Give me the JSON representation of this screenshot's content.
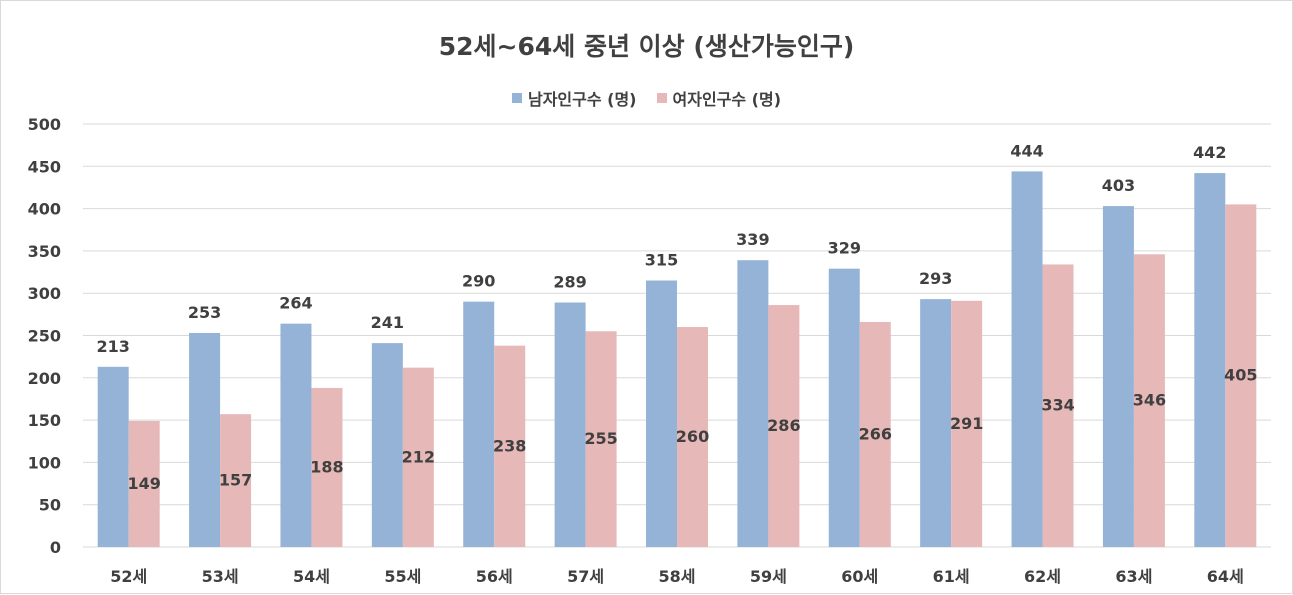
{
  "chart_data": {
    "type": "bar",
    "title": "52세~64세 중년 이상 (생산가능인구)",
    "categories": [
      "52세",
      "53세",
      "54세",
      "55세",
      "56세",
      "57세",
      "58세",
      "59세",
      "60세",
      "61세",
      "62세",
      "63세",
      "64세"
    ],
    "series": [
      {
        "name": "남자인구수 (명)",
        "color": "#95b3d7",
        "values": [
          213,
          253,
          264,
          241,
          290,
          289,
          315,
          339,
          329,
          293,
          444,
          403,
          442
        ]
      },
      {
        "name": "여자인구수 (명)",
        "color": "#e6b9b8",
        "values": [
          149,
          157,
          188,
          212,
          238,
          255,
          260,
          286,
          266,
          291,
          334,
          346,
          405
        ]
      }
    ],
    "ylim": [
      0,
      500
    ],
    "yticks": [
      0,
      50,
      100,
      150,
      200,
      250,
      300,
      350,
      400,
      450,
      500
    ],
    "grid": true,
    "legend": "top"
  }
}
